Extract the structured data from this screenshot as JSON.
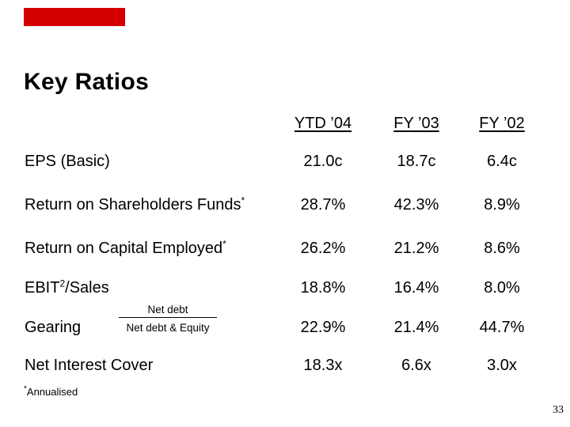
{
  "slide": {
    "title": "Key Ratios",
    "colors": {
      "accent_bar": "#d40000",
      "text": "#000000",
      "background": "#ffffff"
    },
    "table": {
      "columns": [
        "YTD ’04",
        "FY ’03",
        "FY ’02"
      ],
      "rows": [
        {
          "label": "EPS (Basic)",
          "sup": "",
          "values": [
            "21.0c",
            "18.7c",
            "6.4c"
          ]
        },
        {
          "label": "Return on Shareholders Funds",
          "sup": "*",
          "values": [
            "28.7%",
            "42.3%",
            "8.9%"
          ]
        },
        {
          "label": "Return on Capital Employed",
          "sup": "*",
          "values": [
            "26.2%",
            "21.2%",
            "8.6%"
          ]
        },
        {
          "label_pre": "EBIT",
          "label_sup": "2",
          "label_post": "/Sales",
          "values": [
            "18.8%",
            "16.4%",
            "8.0%"
          ]
        },
        {
          "label": "Gearing",
          "fraction": {
            "numerator": "Net debt",
            "denominator": "Net debt & Equity"
          },
          "values": [
            "22.9%",
            "21.4%",
            "44.7%"
          ]
        },
        {
          "label": "Net Interest Cover",
          "sup": "",
          "values": [
            "18.3x",
            "6.6x",
            "3.0x"
          ]
        }
      ]
    },
    "footnote": {
      "sup": "*",
      "text": "Annualised"
    },
    "page_number": "33"
  }
}
